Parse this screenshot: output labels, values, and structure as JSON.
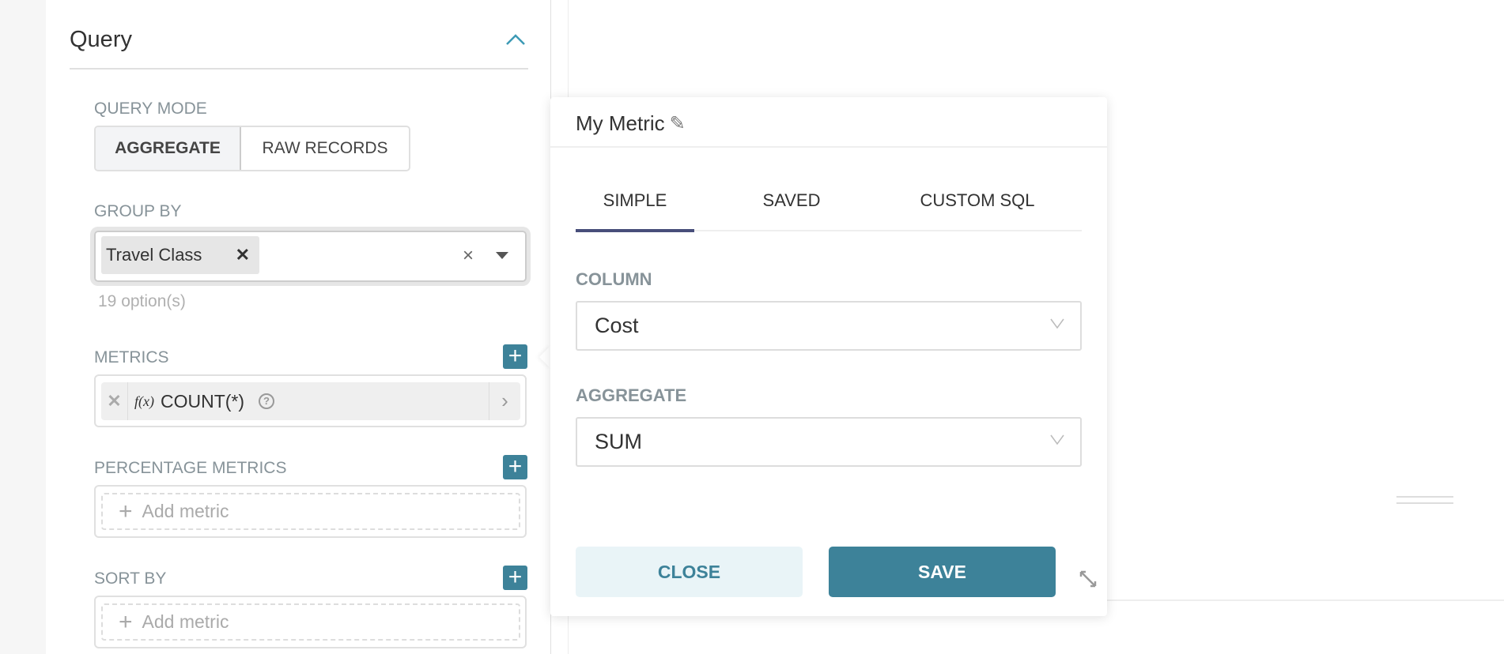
{
  "query": {
    "title": "Query",
    "query_mode": {
      "label": "QUERY MODE",
      "options": [
        "AGGREGATE",
        "RAW RECORDS"
      ],
      "selected": "AGGREGATE"
    },
    "group_by": {
      "label": "GROUP BY",
      "tags": [
        "Travel Class"
      ],
      "options_count": "19 option(s)"
    },
    "metrics": {
      "label": "METRICS",
      "items": [
        {
          "fx": "f(x)",
          "label": "COUNT(*)"
        }
      ]
    },
    "percentage_metrics": {
      "label": "PERCENTAGE METRICS",
      "placeholder": "Add metric"
    },
    "sort_by": {
      "label": "SORT BY",
      "placeholder": "Add metric"
    }
  },
  "popover": {
    "title": "My Metric",
    "tabs": [
      "SIMPLE",
      "SAVED",
      "CUSTOM SQL"
    ],
    "active_tab": "SIMPLE",
    "column": {
      "label": "COLUMN",
      "value": "Cost"
    },
    "aggregate": {
      "label": "AGGREGATE",
      "value": "SUM"
    },
    "close_label": "CLOSE",
    "save_label": "SAVE"
  },
  "colors": {
    "accent": "#3d8299",
    "tab_underline": "#484e7a",
    "close_bg": "#e9f4f7"
  }
}
